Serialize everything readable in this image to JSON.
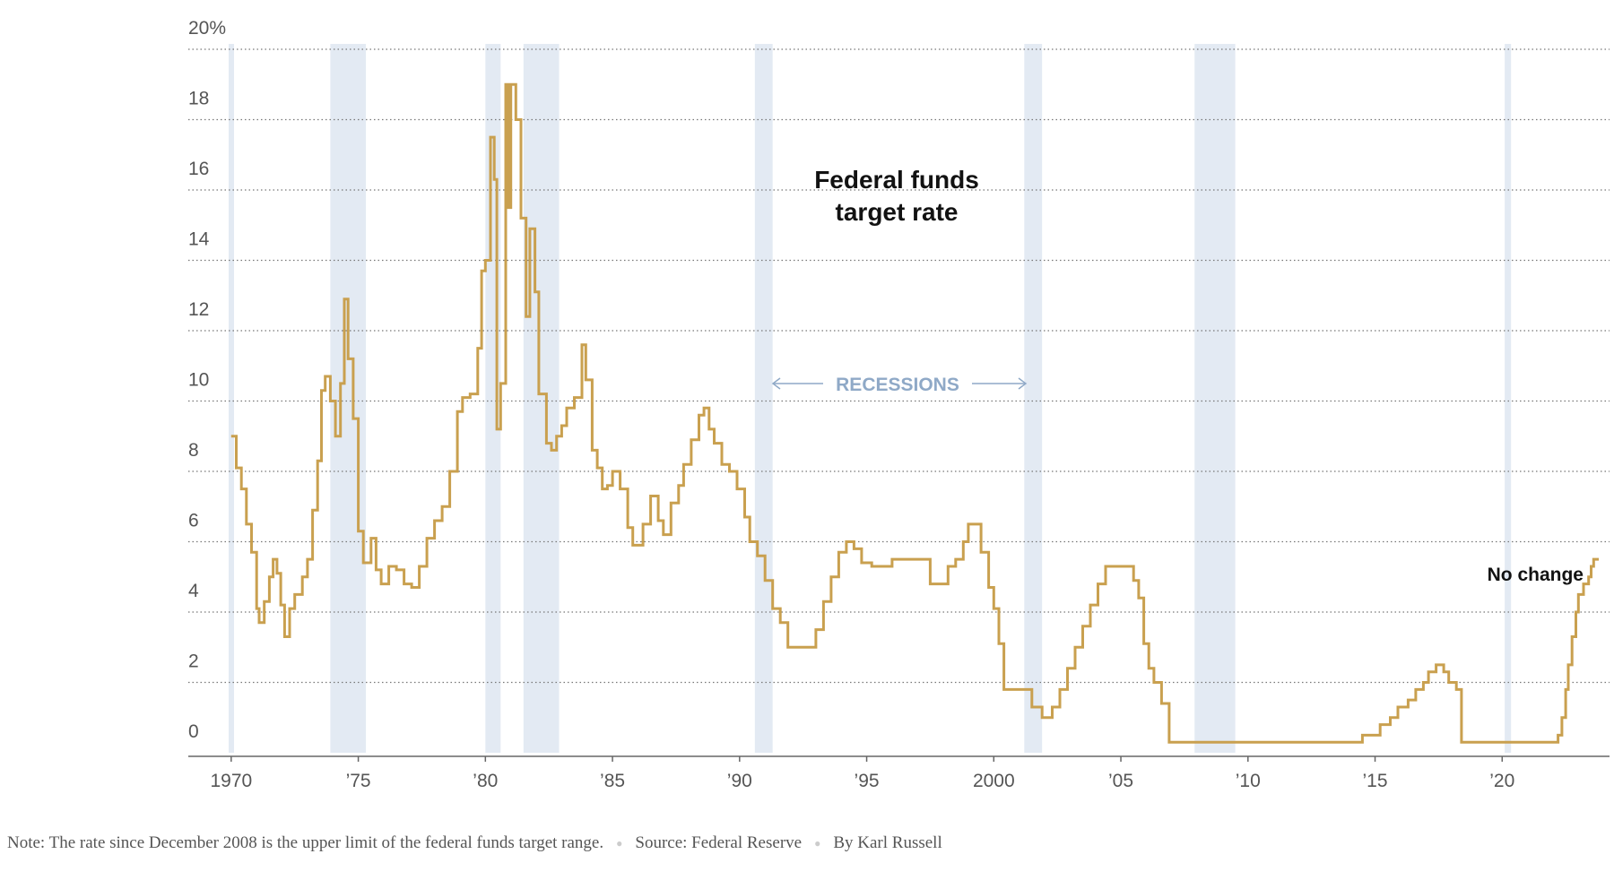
{
  "chart_data": {
    "type": "line",
    "title_lines": [
      "Federal funds",
      "target rate"
    ],
    "y_unit_suffix": "%",
    "ylim": [
      0,
      20
    ],
    "yticks": [
      0,
      2,
      4,
      6,
      8,
      10,
      12,
      14,
      16,
      18,
      20
    ],
    "ytick_labels": [
      "0",
      "2",
      "4",
      "6",
      "8",
      "10",
      "12",
      "14",
      "16",
      "18",
      "20%"
    ],
    "xlim": [
      1969.9,
      2023.8
    ],
    "xticks": [
      1970,
      1975,
      1980,
      1985,
      1990,
      1995,
      2000,
      2005,
      2010,
      2015,
      2020
    ],
    "xtick_labels": [
      "1970",
      "’75",
      "’80",
      "’85",
      "’90",
      "’95",
      "2000",
      "’05",
      "’10",
      "’15",
      "’20"
    ],
    "grid": "horizontal dotted",
    "line_color": "#c9a04f",
    "recession_color": "#e3eaf3",
    "recessions": [
      [
        1969.9,
        1970.1
      ],
      [
        1973.9,
        1975.3
      ],
      [
        1980.0,
        1980.6
      ],
      [
        1981.5,
        1982.9
      ],
      [
        1990.6,
        1991.3
      ],
      [
        2001.2,
        2001.9
      ],
      [
        2007.9,
        2009.5
      ],
      [
        2020.1,
        2020.35
      ]
    ],
    "recession_label": "RECESSIONS",
    "end_annotation": "No change",
    "series": [
      {
        "values": [
          [
            1970.0,
            9.0
          ],
          [
            1970.2,
            8.1
          ],
          [
            1970.4,
            7.5
          ],
          [
            1970.6,
            6.5
          ],
          [
            1970.8,
            5.7
          ],
          [
            1971.0,
            4.1
          ],
          [
            1971.1,
            3.7
          ],
          [
            1971.3,
            4.3
          ],
          [
            1971.5,
            5.0
          ],
          [
            1971.65,
            5.5
          ],
          [
            1971.8,
            5.1
          ],
          [
            1971.95,
            4.2
          ],
          [
            1972.1,
            3.3
          ],
          [
            1972.3,
            4.1
          ],
          [
            1972.5,
            4.5
          ],
          [
            1972.8,
            5.0
          ],
          [
            1973.0,
            5.5
          ],
          [
            1973.2,
            6.9
          ],
          [
            1973.4,
            8.3
          ],
          [
            1973.55,
            10.3
          ],
          [
            1973.7,
            10.7
          ],
          [
            1973.9,
            10.0
          ],
          [
            1974.1,
            9.0
          ],
          [
            1974.3,
            10.5
          ],
          [
            1974.45,
            12.9
          ],
          [
            1974.6,
            11.2
          ],
          [
            1974.8,
            9.5
          ],
          [
            1975.0,
            6.3
          ],
          [
            1975.2,
            5.4
          ],
          [
            1975.5,
            6.1
          ],
          [
            1975.7,
            5.2
          ],
          [
            1975.9,
            4.8
          ],
          [
            1976.2,
            5.3
          ],
          [
            1976.5,
            5.2
          ],
          [
            1976.8,
            4.8
          ],
          [
            1977.1,
            4.7
          ],
          [
            1977.4,
            5.3
          ],
          [
            1977.7,
            6.1
          ],
          [
            1978.0,
            6.6
          ],
          [
            1978.3,
            7.0
          ],
          [
            1978.6,
            8.0
          ],
          [
            1978.9,
            9.7
          ],
          [
            1979.1,
            10.1
          ],
          [
            1979.4,
            10.2
          ],
          [
            1979.7,
            11.5
          ],
          [
            1979.85,
            13.7
          ],
          [
            1980.0,
            14.0
          ],
          [
            1980.2,
            17.5
          ],
          [
            1980.35,
            16.3
          ],
          [
            1980.45,
            9.2
          ],
          [
            1980.6,
            10.5
          ],
          [
            1980.8,
            19.0
          ],
          [
            1980.9,
            15.5
          ],
          [
            1981.0,
            19.0
          ],
          [
            1981.2,
            18.0
          ],
          [
            1981.4,
            15.2
          ],
          [
            1981.6,
            12.4
          ],
          [
            1981.75,
            14.9
          ],
          [
            1981.95,
            13.1
          ],
          [
            1982.1,
            10.2
          ],
          [
            1982.4,
            8.8
          ],
          [
            1982.6,
            8.6
          ],
          [
            1982.8,
            9.0
          ],
          [
            1983.0,
            9.3
          ],
          [
            1983.2,
            9.8
          ],
          [
            1983.5,
            10.1
          ],
          [
            1983.8,
            11.6
          ],
          [
            1983.95,
            10.6
          ],
          [
            1984.2,
            8.6
          ],
          [
            1984.4,
            8.1
          ],
          [
            1984.6,
            7.5
          ],
          [
            1984.8,
            7.6
          ],
          [
            1985.0,
            8.0
          ],
          [
            1985.3,
            7.5
          ],
          [
            1985.6,
            6.4
          ],
          [
            1985.8,
            5.9
          ],
          [
            1986.2,
            6.5
          ],
          [
            1986.5,
            7.3
          ],
          [
            1986.8,
            6.6
          ],
          [
            1987.0,
            6.2
          ],
          [
            1987.3,
            7.1
          ],
          [
            1987.6,
            7.6
          ],
          [
            1987.8,
            8.2
          ],
          [
            1988.1,
            8.9
          ],
          [
            1988.4,
            9.6
          ],
          [
            1988.6,
            9.8
          ],
          [
            1988.8,
            9.2
          ],
          [
            1989.0,
            8.8
          ],
          [
            1989.3,
            8.2
          ],
          [
            1989.6,
            8.0
          ],
          [
            1989.9,
            7.5
          ],
          [
            1990.2,
            6.7
          ],
          [
            1990.4,
            6.0
          ],
          [
            1990.7,
            5.6
          ],
          [
            1991.0,
            4.9
          ],
          [
            1991.3,
            4.1
          ],
          [
            1991.6,
            3.7
          ],
          [
            1991.9,
            3.0
          ],
          [
            1992.3,
            3.0
          ],
          [
            1992.7,
            3.0
          ],
          [
            1993.0,
            3.5
          ],
          [
            1993.3,
            4.3
          ],
          [
            1993.6,
            5.0
          ],
          [
            1993.9,
            5.7
          ],
          [
            1994.2,
            6.0
          ],
          [
            1994.5,
            5.8
          ],
          [
            1994.8,
            5.4
          ],
          [
            1995.2,
            5.3
          ],
          [
            1995.6,
            5.3
          ],
          [
            1996.0,
            5.5
          ],
          [
            1996.5,
            5.5
          ],
          [
            1997.0,
            5.5
          ],
          [
            1997.5,
            4.8
          ],
          [
            1997.9,
            4.8
          ],
          [
            1998.2,
            5.3
          ],
          [
            1998.5,
            5.5
          ],
          [
            1998.8,
            6.0
          ],
          [
            1999.0,
            6.5
          ],
          [
            1999.3,
            6.5
          ],
          [
            1999.5,
            5.7
          ],
          [
            1999.8,
            4.7
          ],
          [
            2000.0,
            4.1
          ],
          [
            2000.2,
            3.1
          ],
          [
            2000.4,
            1.8
          ],
          [
            2000.8,
            1.8
          ],
          [
            2001.2,
            1.8
          ],
          [
            2001.5,
            1.3
          ],
          [
            2001.9,
            1.0
          ],
          [
            2002.3,
            1.3
          ],
          [
            2002.6,
            1.8
          ],
          [
            2002.9,
            2.4
          ],
          [
            2003.2,
            3.0
          ],
          [
            2003.5,
            3.6
          ],
          [
            2003.8,
            4.2
          ],
          [
            2004.1,
            4.8
          ],
          [
            2004.4,
            5.3
          ],
          [
            2004.8,
            5.3
          ],
          [
            2005.2,
            5.3
          ],
          [
            2005.5,
            4.9
          ],
          [
            2005.7,
            4.4
          ],
          [
            2005.9,
            3.1
          ],
          [
            2006.1,
            2.4
          ],
          [
            2006.3,
            2.0
          ],
          [
            2006.6,
            1.4
          ],
          [
            2006.9,
            0.3
          ],
          [
            2007.5,
            0.3
          ],
          [
            2008.5,
            0.3
          ],
          [
            2009.5,
            0.3
          ],
          [
            2010.5,
            0.3
          ],
          [
            2011.5,
            0.3
          ],
          [
            2012.5,
            0.3
          ],
          [
            2013.5,
            0.3
          ],
          [
            2014.5,
            0.5
          ],
          [
            2015.2,
            0.8
          ],
          [
            2015.6,
            1.0
          ],
          [
            2015.9,
            1.3
          ],
          [
            2016.3,
            1.5
          ],
          [
            2016.6,
            1.8
          ],
          [
            2016.9,
            2.0
          ],
          [
            2017.1,
            2.3
          ],
          [
            2017.4,
            2.5
          ],
          [
            2017.7,
            2.3
          ],
          [
            2017.9,
            2.0
          ],
          [
            2018.2,
            1.8
          ],
          [
            2018.4,
            0.3
          ],
          [
            2018.8,
            0.3
          ],
          [
            2019.3,
            0.3
          ],
          [
            2019.8,
            0.3
          ],
          [
            2020.2,
            0.3
          ],
          [
            2020.4,
            0.3
          ],
          [
            2021.0,
            0.3
          ],
          [
            2021.7,
            0.3
          ],
          [
            2022.2,
            0.5
          ],
          [
            2022.35,
            1.0
          ],
          [
            2022.5,
            1.8
          ],
          [
            2022.6,
            2.5
          ],
          [
            2022.75,
            3.3
          ],
          [
            2022.9,
            4.0
          ],
          [
            2023.0,
            4.5
          ],
          [
            2023.2,
            4.8
          ],
          [
            2023.4,
            5.0
          ],
          [
            2023.5,
            5.3
          ],
          [
            2023.6,
            5.5
          ],
          [
            2023.8,
            5.5
          ]
        ]
      }
    ]
  },
  "footer": {
    "note": "Note: The rate since December 2008 is the upper limit of the federal funds target range.",
    "source": "Source: Federal Reserve",
    "byline": "By Karl Russell"
  }
}
